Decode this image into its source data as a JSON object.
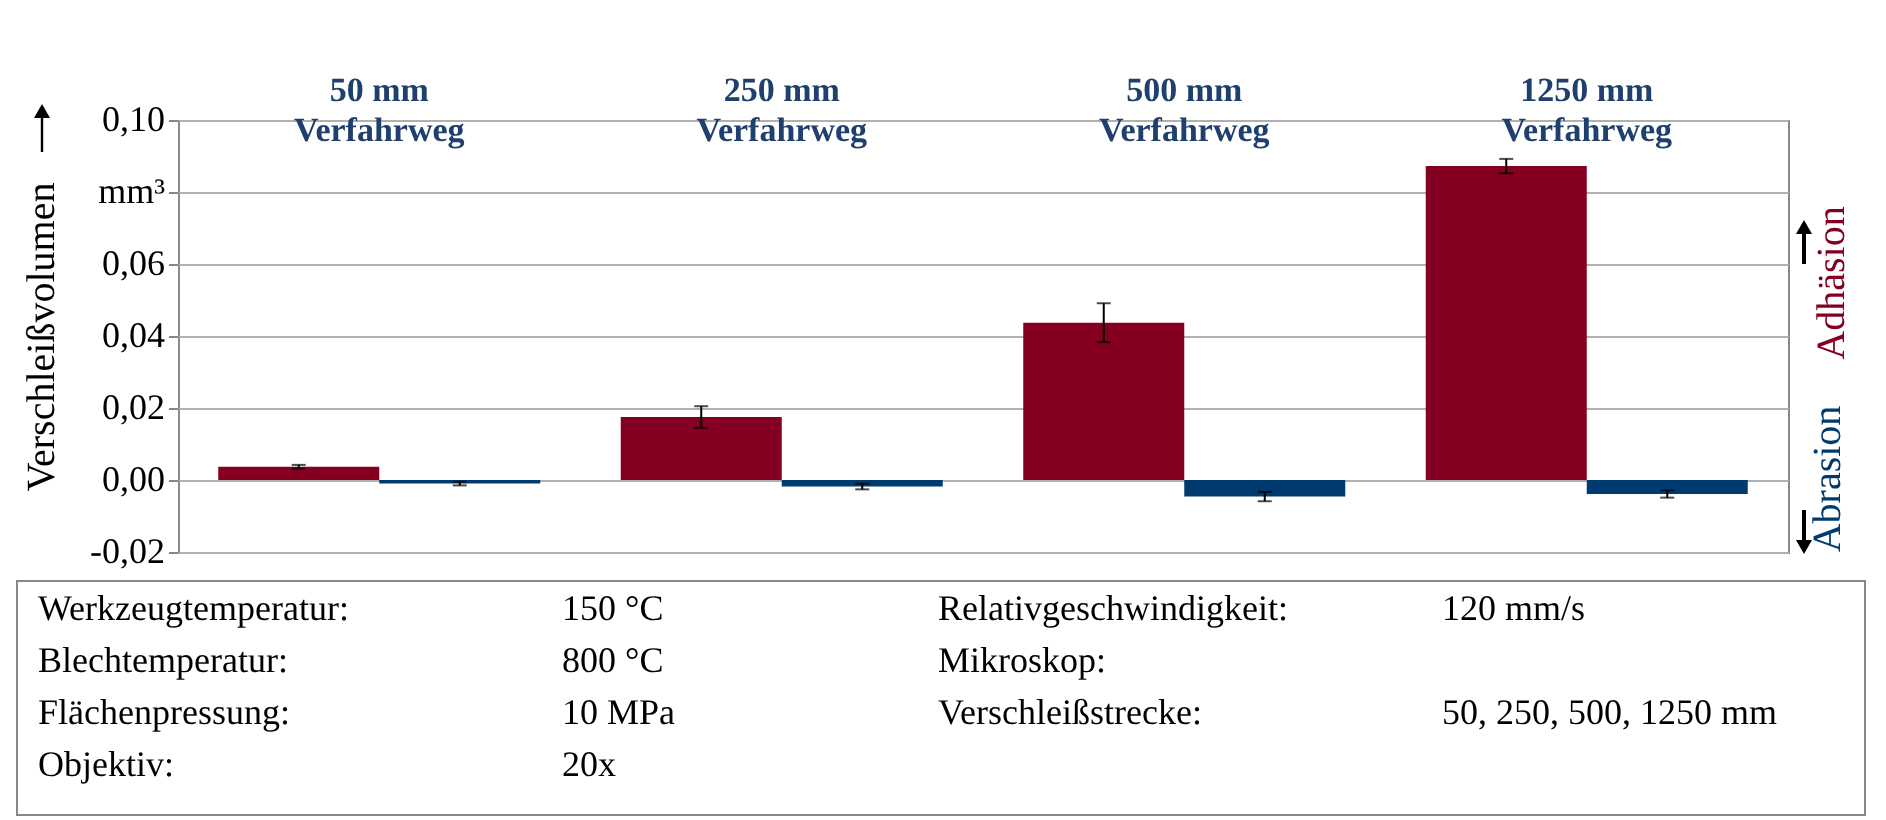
{
  "chart_data": {
    "type": "bar",
    "ylabel": "Verschleißvolumen",
    "categories": [
      "50 mm Verfahrweg",
      "250 mm Verfahrweg",
      "500 mm Verfahrweg",
      "1250 mm Verfahrweg"
    ],
    "series": [
      {
        "name": "Adhäsion",
        "color": "#850020",
        "values": [
          0.0037,
          0.0175,
          0.0437,
          0.0872
        ],
        "errors": [
          0.0005,
          0.003,
          0.0054,
          0.002
        ]
      },
      {
        "name": "Abrasion",
        "color": "#003b6f",
        "values": [
          -0.001,
          -0.0018,
          -0.0046,
          -0.0039
        ],
        "errors": [
          0.0005,
          0.0008,
          0.0013,
          0.001
        ]
      }
    ],
    "ylim": [
      -0.02,
      0.1
    ],
    "yticks": [
      {
        "value": -0.02,
        "label": "-0,02"
      },
      {
        "value": 0,
        "label": "0,00"
      },
      {
        "value": 0.02,
        "label": "0,02"
      },
      {
        "value": 0.04,
        "label": "0,04"
      },
      {
        "value": 0.06,
        "label": "0,06"
      },
      {
        "value": 0.08,
        "label": "mm³"
      },
      {
        "value": 0.1,
        "label": "0,10"
      }
    ],
    "grid": "y",
    "legend": "right",
    "annotations": [
      "Werkzeugtemperatur:",
      "150 °C",
      "Relativgeschwindigkeit:",
      "120 mm/s",
      "Blechtemperatur:",
      "800 °C",
      "Mikroskop:",
      "Flächenpressung:",
      "10 MPa",
      "Verschleißstrecke:",
      "50, 250, 500, 1250 mm",
      "Objektiv:",
      "20x"
    ]
  }
}
